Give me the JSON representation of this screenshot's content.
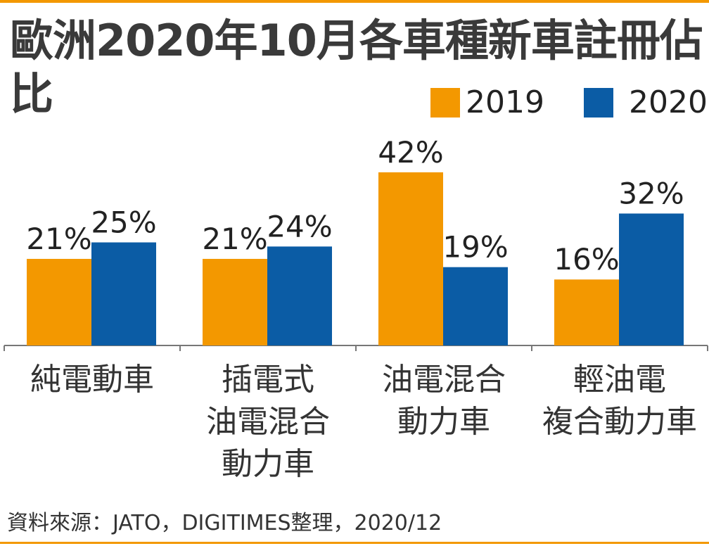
{
  "title": "歐洲2020年10月各車種新車註冊佔比",
  "source": "資料來源：JATO，DIGITIMES整理，2020/12",
  "chart_data": {
    "type": "bar",
    "title": "歐洲2020年10月各車種新車註冊佔比",
    "categories": [
      "純電動車",
      "插電式\n油電混合\n動力車",
      "油電混合\n動力車",
      "輕油電\n複合動力車"
    ],
    "series": [
      {
        "name": "2019",
        "color": "#f39800",
        "values": [
          21,
          21,
          42,
          16
        ],
        "labels": [
          "21%",
          "21%",
          "42%",
          "16%"
        ]
      },
      {
        "name": "2020",
        "color": "#0b5ca5",
        "values": [
          25,
          24,
          19,
          32
        ],
        "labels": [
          "25%",
          "24%",
          "19%",
          "32%"
        ]
      }
    ],
    "unit": "%",
    "ylim": [
      0,
      45
    ],
    "grid": false,
    "legend": "top-right"
  }
}
